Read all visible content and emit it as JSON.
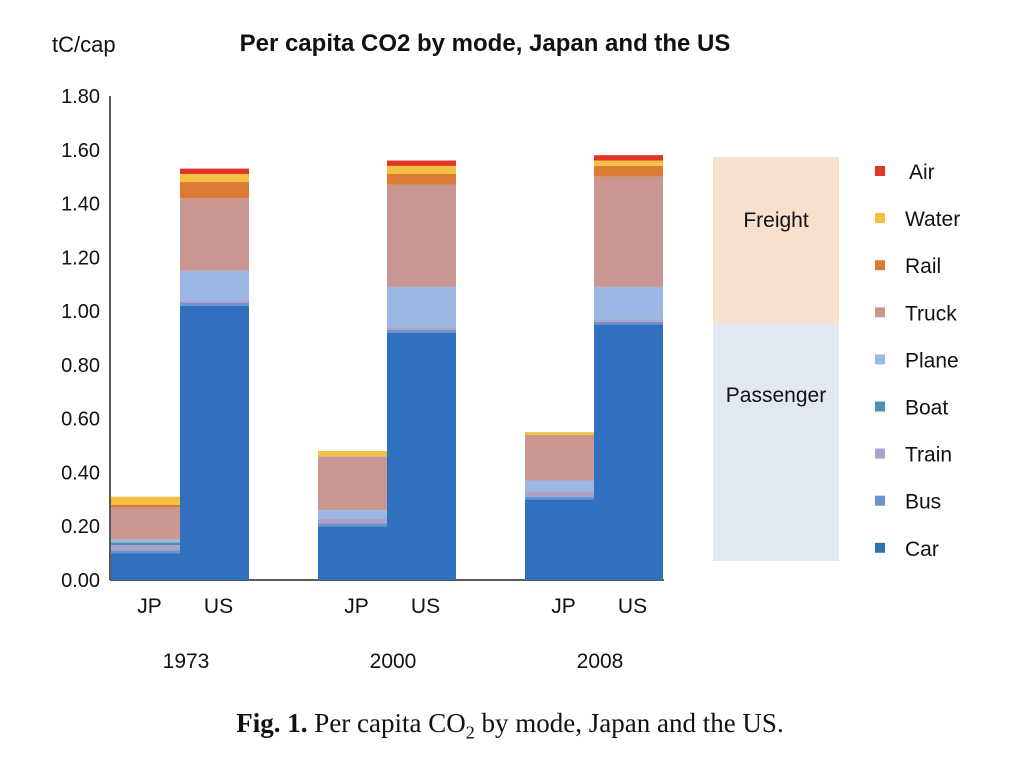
{
  "chart_data": {
    "type": "bar",
    "stacked": true,
    "title": "Per capita CO2 by mode, Japan and the US",
    "ylabel": "tC/cap",
    "ylim": [
      0,
      1.8
    ],
    "yticks": [
      "0.00",
      "0.20",
      "0.40",
      "0.60",
      "0.80",
      "1.00",
      "1.20",
      "1.40",
      "1.60",
      "1.80"
    ],
    "groups": [
      {
        "year": "1973",
        "bars": [
          {
            "label": "JP"
          },
          {
            "label": "US"
          }
        ]
      },
      {
        "year": "2000",
        "bars": [
          {
            "label": "JP"
          },
          {
            "label": "US"
          }
        ]
      },
      {
        "year": "2008",
        "bars": [
          {
            "label": "JP"
          },
          {
            "label": "US"
          }
        ]
      }
    ],
    "categories": [
      "JP 1973",
      "US 1973",
      "JP 2000",
      "US 2000",
      "JP 2008",
      "US 2008"
    ],
    "series": [
      {
        "name": "Car",
        "color": "#3070BE",
        "values": [
          0.1,
          1.02,
          0.2,
          0.92,
          0.3,
          0.95
        ]
      },
      {
        "name": "Bus",
        "color": "#6A93D0",
        "values": [
          0.01,
          0.01,
          0.01,
          0.01,
          0.01,
          0.01
        ]
      },
      {
        "name": "Train",
        "color": "#ABA1C9",
        "values": [
          0.02,
          0.01,
          0.02,
          0.01,
          0.02,
          0.01
        ]
      },
      {
        "name": "Boat",
        "color": "#4A93AE",
        "values": [
          0.01,
          0.0,
          0.0,
          0.0,
          0.0,
          0.0
        ]
      },
      {
        "name": "Plane",
        "color": "#9AB8E3",
        "values": [
          0.01,
          0.11,
          0.03,
          0.15,
          0.04,
          0.12
        ]
      },
      {
        "name": "Truck",
        "color": "#C99692",
        "values": [
          0.12,
          0.27,
          0.2,
          0.38,
          0.17,
          0.41
        ]
      },
      {
        "name": "Rail",
        "color": "#DB7B33",
        "values": [
          0.01,
          0.06,
          0.0,
          0.04,
          0.0,
          0.04
        ]
      },
      {
        "name": "Water",
        "color": "#F2C142",
        "values": [
          0.03,
          0.03,
          0.02,
          0.03,
          0.01,
          0.02
        ]
      },
      {
        "name": "Air",
        "color": "#E3342A",
        "values": [
          0.0,
          0.02,
          0.0,
          0.02,
          0.0,
          0.02
        ]
      }
    ],
    "legend_order": [
      "Air",
      "Water",
      "Rail",
      "Truck",
      "Plane",
      "Boat",
      "Train",
      "Bus",
      "Car"
    ],
    "legend_position": "right",
    "freight_passenger_box": {
      "freight_label": "Freight",
      "passenger_label": "Passenger",
      "freight_color": "#F8E0CF",
      "passenger_color": "#E2E8F3"
    }
  },
  "caption": {
    "prefix": "Fig. 1.",
    "text_before_sub": "Per capita CO",
    "subscript": "2",
    "text_after_sub": " by mode, Japan and the US."
  }
}
